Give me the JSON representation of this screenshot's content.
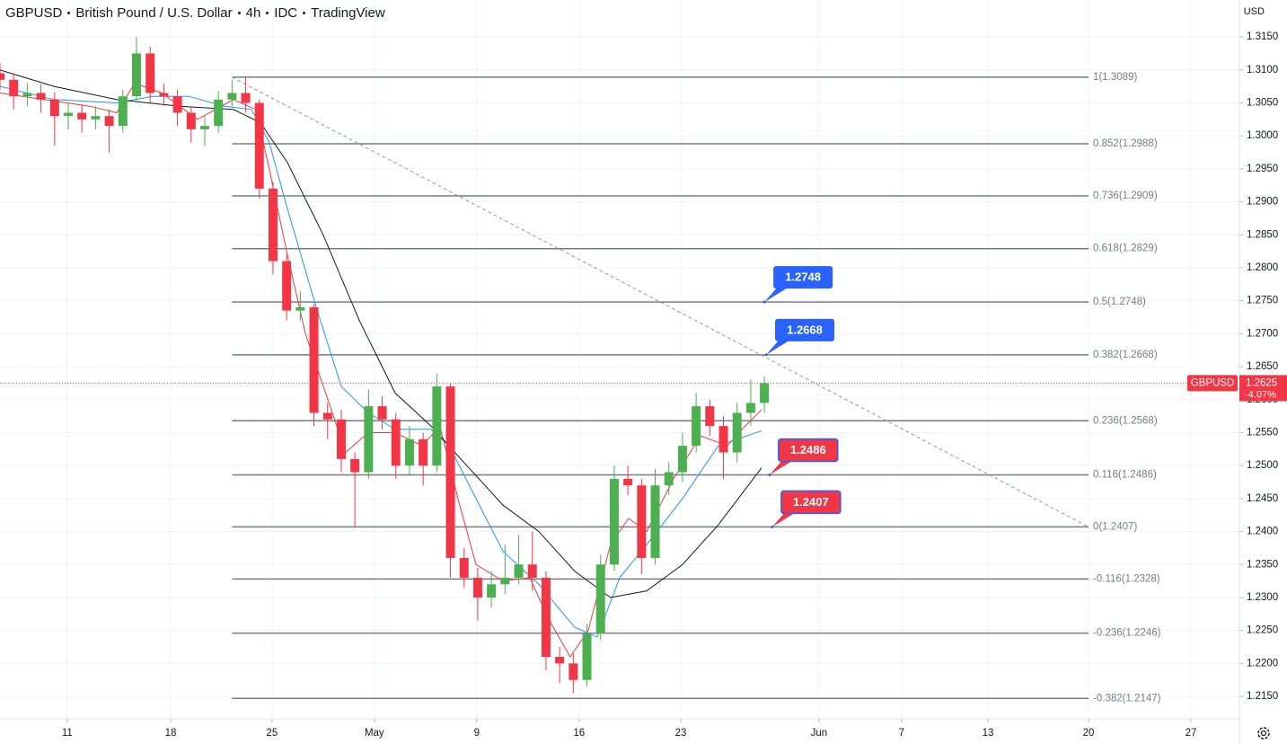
{
  "chart_data": {
    "type": "candlestick",
    "header": {
      "symbol": "GBPUSD",
      "description": "British Pound / U.S. Dollar",
      "interval": "4h",
      "exchange": "IDC",
      "source": "TradingView"
    },
    "currency": "USD",
    "up_color": "#4caf50",
    "down_color": "#f23645",
    "x": [
      0,
      4,
      8,
      12,
      16,
      20,
      24,
      28,
      32,
      36,
      40,
      44,
      48,
      52,
      56,
      60,
      64,
      68,
      72,
      76,
      80,
      84,
      88,
      92,
      96,
      100,
      104,
      108,
      112,
      116,
      120,
      124,
      128,
      132,
      136,
      140,
      144,
      148,
      152,
      156,
      160,
      164,
      168,
      172,
      176,
      180,
      184,
      188,
      192,
      196,
      200,
      204,
      208,
      212,
      216,
      220,
      224
    ],
    "open": [
      1.3095,
      1.3085,
      1.306,
      1.3065,
      1.3055,
      1.303,
      1.3035,
      1.3025,
      1.303,
      1.3015,
      1.306,
      1.3125,
      1.3065,
      1.306,
      1.3035,
      1.301,
      1.3015,
      1.3055,
      1.3065,
      1.305,
      1.292,
      1.281,
      1.2735,
      1.274,
      1.258,
      1.257,
      1.251,
      1.249,
      1.259,
      1.257,
      1.25,
      1.254,
      1.25,
      1.262,
      1.236,
      1.233,
      1.23,
      1.232,
      1.233,
      1.235,
      1.233,
      1.221,
      1.22,
      1.2175,
      1.2245,
      1.235,
      1.248,
      1.247,
      1.236,
      1.247,
      1.249,
      1.253,
      1.259,
      1.256,
      1.252,
      1.258,
      1.2595
    ],
    "high": [
      1.311,
      1.3095,
      1.308,
      1.3078,
      1.3066,
      1.305,
      1.3048,
      1.3045,
      1.304,
      1.307,
      1.315,
      1.3135,
      1.308,
      1.307,
      1.3045,
      1.303,
      1.3068,
      1.3085,
      1.3089,
      1.3055,
      1.293,
      1.282,
      1.2765,
      1.2745,
      1.2595,
      1.2585,
      1.252,
      1.2615,
      1.2605,
      1.258,
      1.256,
      1.255,
      1.264,
      1.2625,
      1.2375,
      1.2345,
      1.234,
      1.238,
      1.2395,
      1.24,
      1.234,
      1.2225,
      1.2215,
      1.226,
      1.2365,
      1.25,
      1.25,
      1.248,
      1.2495,
      1.2505,
      1.255,
      1.261,
      1.26,
      1.2575,
      1.2595,
      1.263,
      1.2635
    ],
    "low": [
      1.307,
      1.304,
      1.3045,
      1.3035,
      1.2985,
      1.301,
      1.3005,
      1.301,
      1.2975,
      1.3005,
      1.305,
      1.305,
      1.3045,
      1.3015,
      1.299,
      1.2985,
      1.3005,
      1.3045,
      1.3035,
      1.2905,
      1.279,
      1.272,
      1.272,
      1.256,
      1.254,
      1.249,
      1.2407,
      1.248,
      1.2555,
      1.248,
      1.2485,
      1.247,
      1.249,
      1.233,
      1.2315,
      1.2265,
      1.2285,
      1.2305,
      1.232,
      1.231,
      1.219,
      1.217,
      1.2155,
      1.2165,
      1.2235,
      1.234,
      1.2455,
      1.2335,
      1.235,
      1.2455,
      1.2475,
      1.252,
      1.2545,
      1.248,
      1.2505,
      1.256,
      1.258
    ],
    "close": [
      1.3085,
      1.306,
      1.3065,
      1.3055,
      1.303,
      1.3035,
      1.3025,
      1.303,
      1.3015,
      1.306,
      1.3125,
      1.3065,
      1.306,
      1.3035,
      1.301,
      1.3015,
      1.3055,
      1.3065,
      1.305,
      1.292,
      1.281,
      1.2735,
      1.274,
      1.258,
      1.257,
      1.251,
      1.249,
      1.259,
      1.257,
      1.25,
      1.254,
      1.25,
      1.262,
      1.236,
      1.233,
      1.23,
      1.232,
      1.233,
      1.235,
      1.233,
      1.221,
      1.22,
      1.2175,
      1.2245,
      1.235,
      1.248,
      1.247,
      1.236,
      1.247,
      1.249,
      1.253,
      1.259,
      1.256,
      1.252,
      1.258,
      1.2595,
      1.2625
    ],
    "series": [
      {
        "color": "#f23645",
        "x": [
          0,
          26.3,
          34.2,
          39.5,
          47.4,
          57.9,
          68.4,
          75,
          78.9,
          84.2,
          89.5,
          96.1,
          101.3,
          107.9,
          115.8,
          123.7,
          128.9,
          134.2,
          139.5,
          147.4,
          155.3,
          160.5,
          167.1,
          172.4,
          178.9,
          184.2,
          189.5,
          197.4,
          205.3,
          213.2,
          218.4,
          223.2
        ],
        "values": [
          1.3065,
          1.3045,
          1.3035,
          1.308,
          1.3065,
          1.3025,
          1.3055,
          1.304,
          1.295,
          1.282,
          1.27,
          1.26,
          1.252,
          1.255,
          1.255,
          1.253,
          1.256,
          1.245,
          1.235,
          1.2325,
          1.233,
          1.227,
          1.221,
          1.225,
          1.238,
          1.242,
          1.24,
          1.248,
          1.2545,
          1.253,
          1.256,
          1.2585
        ]
      },
      {
        "color": "#2196f3",
        "x": [
          0,
          15.8,
          34.2,
          44.7,
          55.3,
          65.8,
          73.7,
          78.9,
          84.2,
          92.1,
          100,
          107.9,
          115.8,
          126.3,
          131.6,
          139.5,
          147.4,
          157.9,
          168.4,
          175,
          181.6,
          189.5,
          200,
          210.5,
          223.2
        ],
        "values": [
          1.3075,
          1.3055,
          1.305,
          1.306,
          1.306,
          1.3045,
          1.304,
          1.299,
          1.289,
          1.275,
          1.262,
          1.258,
          1.2555,
          1.2555,
          1.253,
          1.245,
          1.237,
          1.232,
          1.2255,
          1.224,
          1.233,
          1.238,
          1.245,
          1.253,
          1.2553
        ]
      },
      {
        "color": "#131722",
        "x": [
          0,
          15.8,
          34.2,
          52.6,
          68.4,
          76.3,
          84.2,
          94.7,
          105.3,
          115.8,
          126.3,
          136.8,
          147.4,
          157.9,
          168.4,
          178.9,
          189.5,
          200,
          210.5,
          223.2
        ],
        "values": [
          1.31,
          1.3075,
          1.3055,
          1.3045,
          1.304,
          1.302,
          1.296,
          1.285,
          1.272,
          1.261,
          1.256,
          1.25,
          1.244,
          1.24,
          1.234,
          1.23,
          1.231,
          1.235,
          1.241,
          1.2497
        ]
      }
    ],
    "xlim": [
      0,
      363.2
    ],
    "ylim": [
      1.2116,
      1.3206
    ],
    "xticks": [
      {
        "value": 19.7,
        "label": "11"
      },
      {
        "value": 50,
        "label": "18"
      },
      {
        "value": 79.7,
        "label": "25"
      },
      {
        "value": 109.7,
        "label": "May"
      },
      {
        "value": 139.7,
        "label": "9"
      },
      {
        "value": 169.7,
        "label": "16"
      },
      {
        "value": 199.5,
        "label": "23"
      },
      {
        "value": 240,
        "label": "Jun"
      },
      {
        "value": 264.2,
        "label": "7"
      },
      {
        "value": 289.5,
        "label": "13"
      },
      {
        "value": 319,
        "label": "20"
      },
      {
        "value": 349,
        "label": "27"
      }
    ],
    "yticks": [
      {
        "value": 1.215,
        "label": "1.2150"
      },
      {
        "value": 1.22,
        "label": "1.2200"
      },
      {
        "value": 1.225,
        "label": "1.2250"
      },
      {
        "value": 1.23,
        "label": "1.2300"
      },
      {
        "value": 1.235,
        "label": "1.2350"
      },
      {
        "value": 1.24,
        "label": "1.2400"
      },
      {
        "value": 1.245,
        "label": "1.2450"
      },
      {
        "value": 1.25,
        "label": "1.2500"
      },
      {
        "value": 1.255,
        "label": "1.2550"
      },
      {
        "value": 1.26,
        "label": "1.2600"
      },
      {
        "value": 1.265,
        "label": "1.2650"
      },
      {
        "value": 1.27,
        "label": "1.2700"
      },
      {
        "value": 1.275,
        "label": "1.2750"
      },
      {
        "value": 1.28,
        "label": "1.2800"
      },
      {
        "value": 1.285,
        "label": "1.2850"
      },
      {
        "value": 1.29,
        "label": "1.2900"
      },
      {
        "value": 1.295,
        "label": "1.2950"
      },
      {
        "value": 1.3,
        "label": "1.3000"
      },
      {
        "value": 1.305,
        "label": "1.3050"
      },
      {
        "value": 1.31,
        "label": "1.3100"
      },
      {
        "value": 1.315,
        "label": "1.3150"
      }
    ],
    "grid": true,
    "fib_x": [
      68,
      319
    ],
    "fib_color": "#787b86",
    "fib_levels": [
      {
        "value": 1.3089,
        "label": "1(1.3089)"
      },
      {
        "value": 1.2988,
        "label": "0.852(1.2988)"
      },
      {
        "value": 1.2909,
        "label": "0.736(1.2909)"
      },
      {
        "value": 1.2829,
        "label": "0.618(1.2829)"
      },
      {
        "value": 1.2748,
        "label": "0.5(1.2748)"
      },
      {
        "value": 1.2668,
        "label": "0.382(1.2668)"
      },
      {
        "value": 1.2568,
        "label": "0.236(1.2568)"
      },
      {
        "value": 1.2486,
        "label": "0.116(1.2486)"
      },
      {
        "value": 1.2407,
        "label": "0(1.2407)"
      },
      {
        "value": 1.2328,
        "label": "-0.116(1.2328)"
      },
      {
        "value": 1.2246,
        "label": "-0.236(1.2246)"
      },
      {
        "value": 1.2147,
        "label": "-0.382(1.2147)"
      }
    ],
    "trendline": {
      "x": [
        68,
        319
      ],
      "values": [
        1.3089,
        1.2407
      ]
    },
    "callouts": [
      {
        "x": 224,
        "value": 1.2748,
        "color": "#2962ff"
      },
      {
        "x": 224.5,
        "value": 1.2668,
        "color": "#2962ff"
      },
      {
        "x": 225.5,
        "value": 1.2486,
        "color": "#f23645"
      },
      {
        "x": 226.3,
        "value": 1.2407,
        "color": "#f23645"
      }
    ],
    "last_price": {
      "name": "GBPUSD",
      "value": 1.2625,
      "change": "-4.07%",
      "color": "#f23645"
    }
  }
}
